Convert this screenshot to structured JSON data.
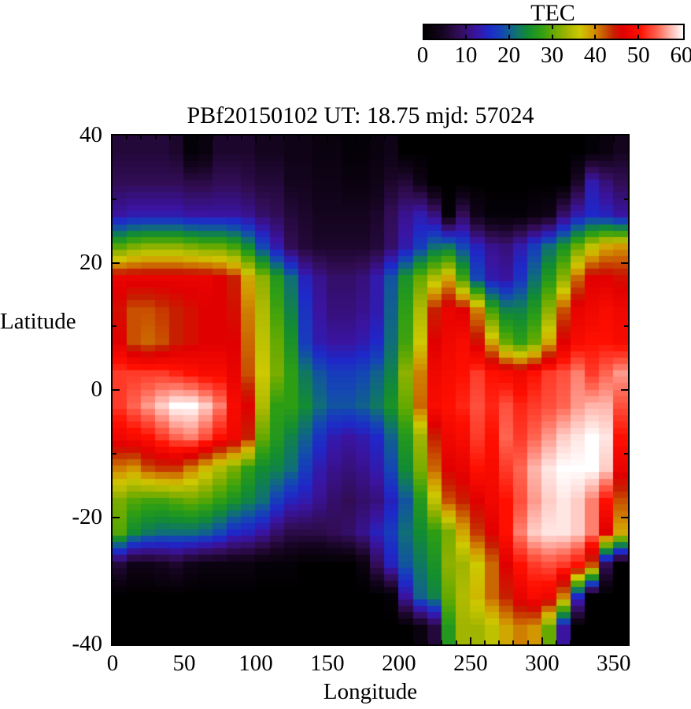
{
  "colorbar": {
    "title": "TEC",
    "min": 0,
    "max": 60,
    "tick_labels": [
      "0",
      "10",
      "20",
      "30",
      "40",
      "50",
      "60"
    ]
  },
  "axes": {
    "x_tick_labels": [
      "0",
      "50",
      "100",
      "150",
      "200",
      "250",
      "300",
      "350"
    ],
    "y_tick_labels": [
      "40",
      "20",
      "0",
      "-20",
      "-40"
    ],
    "x_minor_step": 10,
    "y_minor_step": 10
  },
  "chart_data": {
    "type": "heatmap",
    "title": "PBf20150102  UT: 18.75  mjd: 57024",
    "xlabel": "Longitude",
    "ylabel": "Latitude",
    "colorbar_label": "TEC",
    "xlim": [
      0,
      360
    ],
    "ylim": [
      -40,
      40
    ],
    "zlim": [
      0,
      60
    ],
    "x_ticks": [
      0,
      50,
      100,
      150,
      200,
      250,
      300,
      350
    ],
    "y_ticks": [
      40,
      20,
      0,
      -20,
      -40
    ],
    "grid": false,
    "lon_start": 0,
    "lon_step": 10,
    "lat_band_top": 40,
    "lat_band_step": -5,
    "palette": [
      [
        0,
        "#000000"
      ],
      [
        4,
        "#14041e"
      ],
      [
        8,
        "#320d56"
      ],
      [
        12,
        "#3a14a0"
      ],
      [
        15,
        "#1e28c8"
      ],
      [
        18,
        "#1446b4"
      ],
      [
        21,
        "#0f6e78"
      ],
      [
        24,
        "#128c32"
      ],
      [
        27,
        "#2d9e14"
      ],
      [
        30,
        "#66aa00"
      ],
      [
        33,
        "#a0b400"
      ],
      [
        36,
        "#cdc800"
      ],
      [
        39,
        "#d29600"
      ],
      [
        42,
        "#c85000"
      ],
      [
        44,
        "#c81e00"
      ],
      [
        46,
        "#e10000"
      ],
      [
        50,
        "#ff0f00"
      ],
      [
        54,
        "#ff6450"
      ],
      [
        57,
        "#ffb4aa"
      ],
      [
        60,
        "#ffffff"
      ]
    ],
    "values": [
      [
        6,
        6,
        6,
        6,
        5,
        1,
        2,
        5,
        5,
        5,
        4,
        4,
        3,
        3,
        2,
        2,
        1,
        1,
        2,
        3,
        0,
        0,
        0,
        0,
        0,
        0,
        0,
        0,
        0,
        0,
        0,
        0,
        0,
        1,
        2,
        4
      ],
      [
        8,
        8,
        8,
        8,
        8,
        7,
        7,
        8,
        8,
        7,
        6,
        6,
        4,
        4,
        3,
        3,
        2,
        2,
        3,
        5,
        6,
        3,
        0,
        0,
        0,
        0,
        0,
        0,
        0,
        0,
        0,
        0,
        5,
        13,
        10,
        8
      ],
      [
        12,
        13,
        13,
        13,
        13,
        12,
        12,
        12,
        12,
        11,
        9,
        8,
        6,
        5,
        4,
        4,
        4,
        4,
        5,
        8,
        11,
        13,
        10,
        1,
        8,
        3,
        1,
        1,
        1,
        2,
        3,
        9,
        13,
        15,
        14,
        12
      ],
      [
        29,
        31,
        32,
        32,
        32,
        31,
        30,
        30,
        28,
        24,
        18,
        13,
        8,
        6,
        5,
        5,
        5,
        5,
        6,
        9,
        13,
        17,
        21,
        22,
        18,
        14,
        11,
        10,
        13,
        17,
        21,
        25,
        30,
        35,
        38,
        39
      ],
      [
        47,
        47,
        47,
        47,
        47,
        47,
        47,
        46,
        44,
        38,
        32,
        26,
        21,
        14,
        11,
        9,
        9,
        10,
        13,
        19,
        25,
        30,
        34,
        38,
        28,
        18,
        13,
        12,
        16,
        21,
        26,
        32,
        41,
        46,
        46,
        45
      ],
      [
        45,
        42,
        42,
        43,
        44,
        45,
        46,
        46,
        45,
        40,
        34,
        28,
        23,
        16,
        12,
        10,
        10,
        11,
        13,
        20,
        27,
        34,
        44,
        47,
        46,
        40,
        28,
        23,
        23,
        26,
        32,
        42,
        47,
        48,
        49,
        48
      ],
      [
        46,
        42,
        41,
        42,
        44,
        45,
        46,
        46,
        46,
        41,
        35,
        30,
        25,
        17,
        13,
        12,
        12,
        13,
        15,
        21,
        28,
        36,
        46,
        48,
        49,
        45,
        38,
        30,
        27,
        30,
        38,
        46,
        49,
        50,
        50,
        49
      ],
      [
        52,
        52,
        52,
        52,
        51,
        50,
        49,
        49,
        47,
        42,
        36,
        31,
        27,
        22,
        19,
        17,
        17,
        18,
        20,
        23,
        32,
        40,
        48,
        49,
        50,
        52,
        50,
        49,
        48,
        50,
        52,
        53,
        55,
        52,
        54,
        56
      ],
      [
        52,
        54,
        56,
        58,
        60,
        60,
        58,
        55,
        49,
        46,
        34,
        27,
        27,
        24,
        21,
        19,
        19,
        20,
        22,
        25,
        30,
        41,
        49,
        50,
        51,
        53,
        51,
        53,
        51,
        52,
        53,
        54,
        56,
        57,
        57,
        53
      ],
      [
        48,
        49,
        50,
        52,
        54,
        55,
        53,
        50,
        48,
        44,
        30,
        26,
        23,
        20,
        16,
        13,
        12,
        13,
        15,
        20,
        26,
        33,
        44,
        48,
        49,
        52,
        50,
        54,
        52,
        54,
        56,
        58,
        59,
        60,
        59,
        50
      ],
      [
        40,
        39,
        42,
        43,
        43,
        40,
        37,
        34,
        31,
        27,
        24,
        23,
        21,
        17,
        13,
        11,
        10,
        11,
        13,
        18,
        24,
        31,
        41,
        46,
        47,
        50,
        49,
        52,
        54,
        57,
        59,
        60,
        60,
        60,
        58,
        47
      ],
      [
        31,
        29,
        28,
        28,
        29,
        30,
        29,
        27,
        25,
        23,
        21,
        17,
        14,
        13,
        11,
        9,
        8,
        9,
        10,
        14,
        19,
        26,
        35,
        42,
        44,
        46,
        48,
        50,
        53,
        56,
        58,
        59,
        58,
        55,
        50,
        42
      ],
      [
        29,
        24,
        22,
        21,
        21,
        21,
        20,
        18,
        15,
        14,
        12,
        9,
        7,
        7,
        7,
        8,
        9,
        11,
        14,
        17,
        21,
        24,
        27,
        31,
        38,
        43,
        46,
        50,
        55,
        58,
        59,
        59,
        58,
        55,
        46,
        38
      ],
      [
        6,
        3,
        3,
        4,
        5,
        3,
        2,
        2,
        2,
        2,
        1,
        1,
        1,
        0,
        0,
        0,
        0,
        2,
        8,
        14,
        19,
        22,
        25,
        32,
        33,
        36,
        41,
        46,
        50,
        52,
        53,
        52,
        50,
        42,
        8,
        0
      ],
      [
        0,
        0,
        0,
        0,
        0,
        0,
        0,
        0,
        0,
        0,
        0,
        0,
        0,
        0,
        0,
        0,
        0,
        0,
        0,
        1,
        12,
        20,
        23,
        30,
        34,
        37,
        41,
        44,
        47,
        49,
        48,
        40,
        15,
        0,
        0,
        0
      ],
      [
        0,
        0,
        0,
        0,
        0,
        0,
        0,
        0,
        0,
        0,
        0,
        0,
        0,
        0,
        0,
        0,
        0,
        0,
        0,
        0,
        0,
        2,
        6,
        26,
        33,
        33,
        35,
        38,
        40,
        39,
        30,
        12,
        0,
        0,
        0,
        0
      ]
    ]
  }
}
